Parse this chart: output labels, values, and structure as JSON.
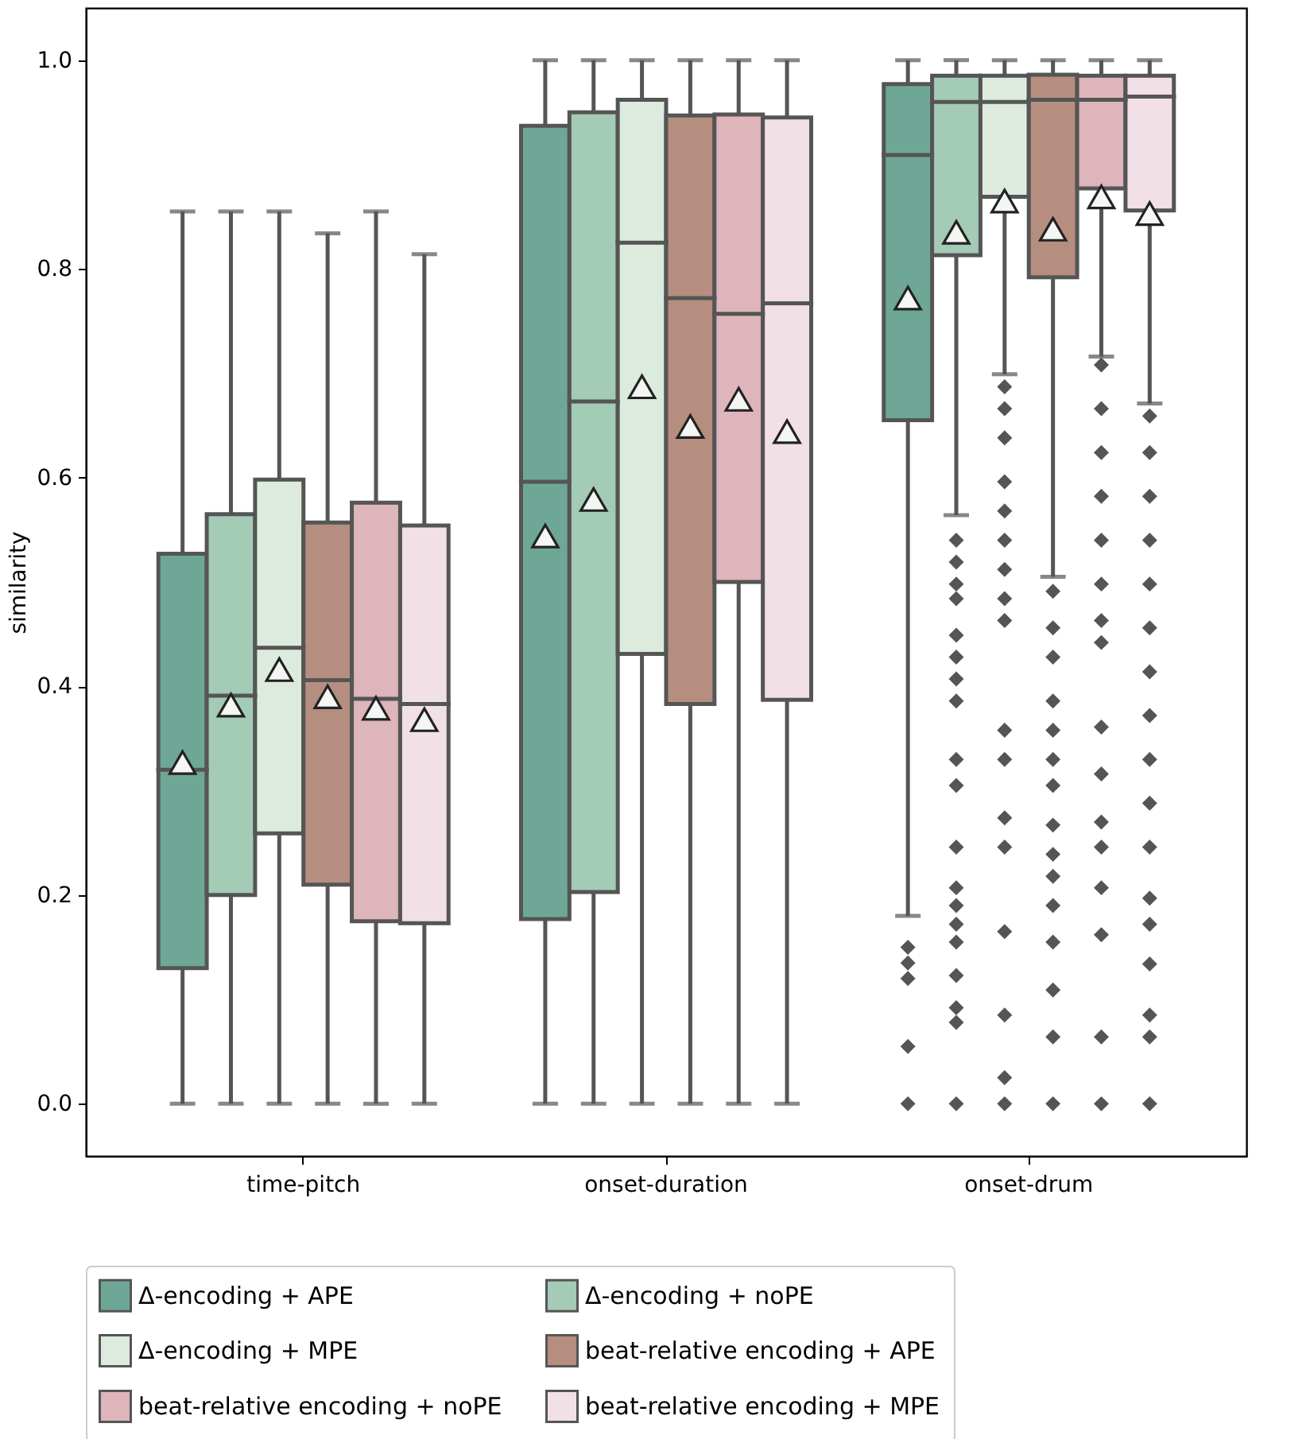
{
  "chart_data": {
    "type": "box",
    "ylabel": "similarity",
    "categories": [
      "time-pitch",
      "onset-duration",
      "onset-drum"
    ],
    "ylim": [
      -0.05,
      1.05
    ],
    "yticks": [
      {
        "value": 0,
        "label": "0.0"
      },
      {
        "value": 0.2,
        "label": "0.2"
      },
      {
        "value": 0.4,
        "label": "0.4"
      },
      {
        "value": 0.6,
        "label": "0.6"
      },
      {
        "value": 0.8,
        "label": "0.8"
      },
      {
        "value": 1,
        "label": "1.0"
      }
    ],
    "grid": false,
    "legend": "bottom",
    "series": [
      {
        "name": "Δ-encoding + APE",
        "color": "#6fa797",
        "boxes": [
          {
            "low": 0,
            "q1": 0.13,
            "median": 0.32,
            "q3": 0.527,
            "high": 0.855,
            "mean": 0.327
          },
          {
            "low": 0,
            "q1": 0.177,
            "median": 0.596,
            "q3": 0.937,
            "high": 1,
            "mean": 0.544
          },
          {
            "low": 0.18,
            "q1": 0.655,
            "median": 0.909,
            "q3": 0.977,
            "high": 1,
            "mean": 0.772,
            "outliers": [
              0.15,
              0.135,
              0.12,
              0.055,
              0
            ]
          }
        ]
      },
      {
        "name": "Δ-encoding + noPE",
        "color": "#a3cbb6",
        "boxes": [
          {
            "low": 0,
            "q1": 0.2,
            "median": 0.391,
            "q3": 0.565,
            "high": 0.855,
            "mean": 0.382
          },
          {
            "low": 0,
            "q1": 0.203,
            "median": 0.673,
            "q3": 0.95,
            "high": 1,
            "mean": 0.579
          },
          {
            "low": 0.564,
            "q1": 0.813,
            "median": 0.96,
            "q3": 0.985,
            "high": 1,
            "mean": 0.835,
            "outliers": [
              0.54,
              0.519,
              0.498,
              0.484,
              0.449,
              0.428,
              0.407,
              0.386,
              0.33,
              0.305,
              0.246,
              0.207,
              0.19,
              0.172,
              0.155,
              0.123,
              0.092,
              0.078,
              0
            ]
          }
        ]
      },
      {
        "name": "Δ-encoding + MPE",
        "color": "#dcebde",
        "boxes": [
          {
            "low": 0,
            "q1": 0.259,
            "median": 0.437,
            "q3": 0.598,
            "high": 0.855,
            "mean": 0.416
          },
          {
            "low": 0,
            "q1": 0.431,
            "median": 0.825,
            "q3": 0.962,
            "high": 1,
            "mean": 0.687
          },
          {
            "low": 0.699,
            "q1": 0.869,
            "median": 0.96,
            "q3": 0.985,
            "high": 1,
            "mean": 0.865,
            "outliers": [
              0.687,
              0.666,
              0.638,
              0.596,
              0.568,
              0.54,
              0.512,
              0.484,
              0.463,
              0.358,
              0.33,
              0.274,
              0.246,
              0.165,
              0.085,
              0.025,
              0
            ]
          }
        ]
      },
      {
        "name": "beat-relative encoding + APE",
        "color": "#b58e80",
        "boxes": [
          {
            "low": 0,
            "q1": 0.21,
            "median": 0.406,
            "q3": 0.557,
            "high": 0.834,
            "mean": 0.39
          },
          {
            "low": 0,
            "q1": 0.383,
            "median": 0.772,
            "q3": 0.947,
            "high": 1,
            "mean": 0.649
          },
          {
            "low": 0.505,
            "q1": 0.792,
            "median": 0.962,
            "q3": 0.986,
            "high": 1,
            "mean": 0.838,
            "outliers": [
              0.491,
              0.456,
              0.428,
              0.386,
              0.358,
              0.33,
              0.305,
              0.267,
              0.239,
              0.218,
              0.19,
              0.155,
              0.109,
              0.064,
              0
            ]
          }
        ]
      },
      {
        "name": "beat-relative encoding + noPE",
        "color": "#ddb5ba",
        "boxes": [
          {
            "low": 0,
            "q1": 0.175,
            "median": 0.388,
            "q3": 0.576,
            "high": 0.855,
            "mean": 0.379
          },
          {
            "low": 0,
            "q1": 0.5,
            "median": 0.757,
            "q3": 0.948,
            "high": 1,
            "mean": 0.675
          },
          {
            "low": 0.716,
            "q1": 0.877,
            "median": 0.962,
            "q3": 0.985,
            "high": 1,
            "mean": 0.869,
            "outliers": [
              0.708,
              0.666,
              0.624,
              0.582,
              0.54,
              0.498,
              0.463,
              0.442,
              0.361,
              0.316,
              0.27,
              0.246,
              0.207,
              0.162,
              0.064,
              0
            ]
          }
        ]
      },
      {
        "name": "beat-relative encoding + MPE",
        "color": "#f1e0e6",
        "boxes": [
          {
            "low": 0,
            "q1": 0.173,
            "median": 0.383,
            "q3": 0.554,
            "high": 0.814,
            "mean": 0.368
          },
          {
            "low": 0,
            "q1": 0.387,
            "median": 0.767,
            "q3": 0.945,
            "high": 1,
            "mean": 0.644
          },
          {
            "low": 0.671,
            "q1": 0.856,
            "median": 0.965,
            "q3": 0.985,
            "high": 1,
            "mean": 0.853,
            "outliers": [
              0.659,
              0.624,
              0.582,
              0.54,
              0.498,
              0.456,
              0.414,
              0.372,
              0.33,
              0.288,
              0.246,
              0.197,
              0.172,
              0.134,
              0.085,
              0.064,
              0
            ]
          }
        ]
      }
    ]
  }
}
